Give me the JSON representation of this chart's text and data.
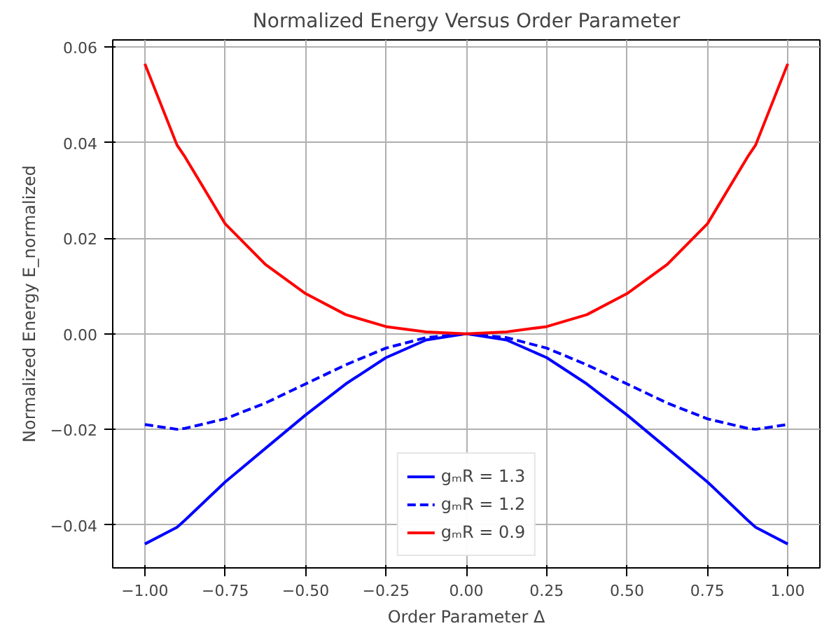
{
  "chart_data": {
    "type": "line",
    "title": "Normalized Energy Versus Order Parameter",
    "xlabel": "Order Parameter Δ",
    "ylabel": "Normalized Energy E_normalized",
    "x": [
      -1,
      -0.9,
      -0.875,
      -0.75,
      -0.625,
      -0.5,
      -0.375,
      -0.25,
      -0.125,
      0,
      0.125,
      0.25,
      0.375,
      0.5,
      0.625,
      0.75,
      0.875,
      0.9,
      1
    ],
    "series": [
      {
        "name": "gₘR = 1.3",
        "color": "#0000ff",
        "line_style": "solid",
        "values": [
          -0.044,
          -0.0405,
          -0.039,
          -0.031,
          -0.024,
          -0.017,
          -0.0105,
          -0.005,
          -0.0013,
          0,
          -0.0013,
          -0.005,
          -0.0105,
          -0.017,
          -0.024,
          -0.031,
          -0.039,
          -0.0405,
          -0.044
        ]
      },
      {
        "name": "gₘR = 1.2",
        "color": "#0000ff",
        "line_style": "dashed",
        "values": [
          -0.019,
          -0.02,
          -0.0198,
          -0.0178,
          -0.0145,
          -0.0105,
          -0.0065,
          -0.003,
          -0.0008,
          0,
          -0.0008,
          -0.003,
          -0.0065,
          -0.0105,
          -0.0145,
          -0.0178,
          -0.0198,
          -0.02,
          -0.019
        ]
      },
      {
        "name": "gₘR = 0.9",
        "color": "#ff0000",
        "line_style": "solid",
        "values": [
          0.0565,
          0.0395,
          0.037,
          0.023,
          0.0145,
          0.0084,
          0.004,
          0.0015,
          0.0004,
          0,
          0.0004,
          0.0015,
          0.004,
          0.0084,
          0.0145,
          0.023,
          0.037,
          0.0395,
          0.0565
        ]
      }
    ],
    "xlim": [
      -1.1,
      1.1
    ],
    "ylim": [
      -0.049,
      0.0615
    ],
    "xticks": [
      {
        "value": -1,
        "label": "−1.00"
      },
      {
        "value": -0.75,
        "label": "−0.75"
      },
      {
        "value": -0.5,
        "label": "−0.50"
      },
      {
        "value": -0.25,
        "label": "−0.25"
      },
      {
        "value": 0,
        "label": "0.00"
      },
      {
        "value": 0.25,
        "label": "0.25"
      },
      {
        "value": 0.5,
        "label": "0.50"
      },
      {
        "value": 0.75,
        "label": "0.75"
      },
      {
        "value": 1,
        "label": "1.00"
      }
    ],
    "yticks": [
      {
        "value": -0.04,
        "label": "−0.04"
      },
      {
        "value": -0.02,
        "label": "−0.02"
      },
      {
        "value": 0,
        "label": "0.00"
      },
      {
        "value": 0.02,
        "label": "0.02"
      },
      {
        "value": 0.04,
        "label": "0.04"
      },
      {
        "value": 0.06,
        "label": "0.06"
      }
    ],
    "grid": true,
    "legend": "bottom"
  }
}
